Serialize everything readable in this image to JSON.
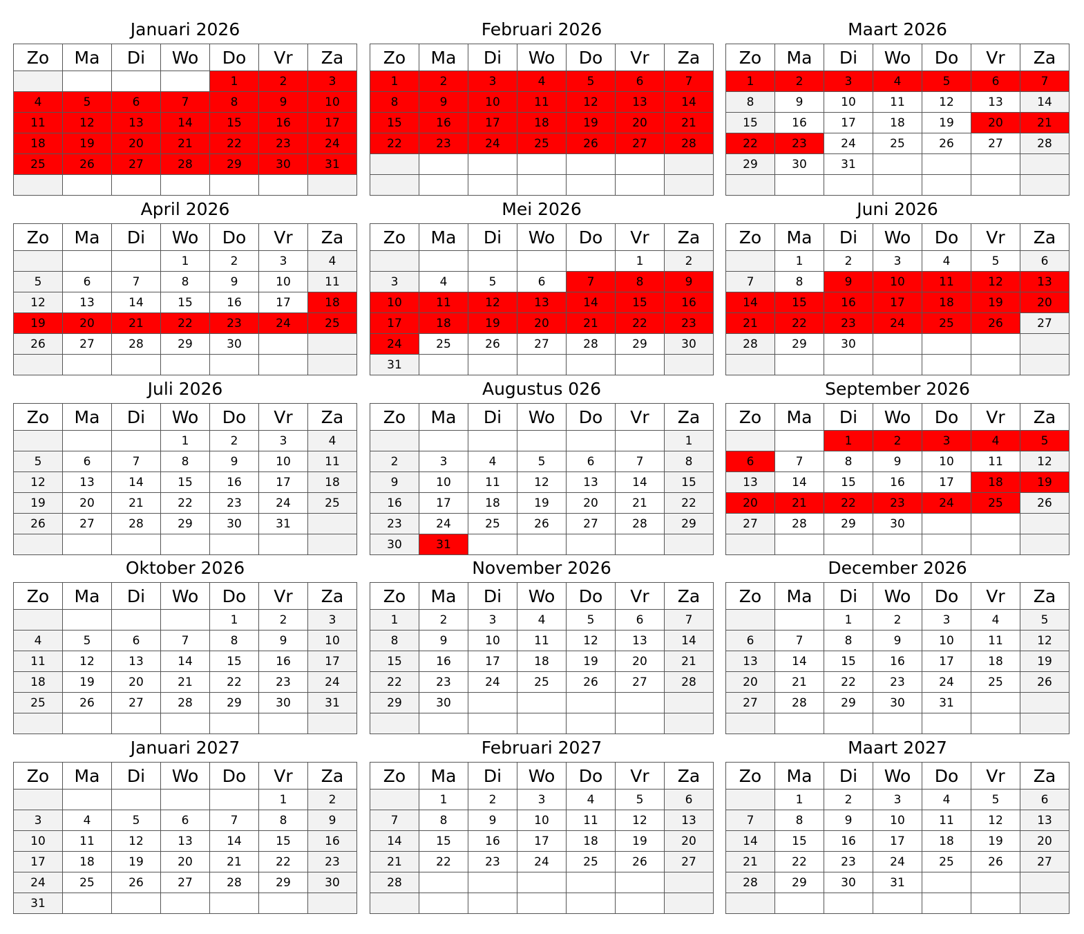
{
  "weekdays": [
    "Zo",
    "Ma",
    "Di",
    "Wo",
    "Do",
    "Vr",
    "Za"
  ],
  "colors": {
    "highlight": "#ff0000",
    "weekend": "#f2f2f2",
    "normal": "#ffffff",
    "border": "#555555"
  },
  "months": [
    {
      "title": "Januari 2026",
      "first_weekday": 4,
      "days": 31,
      "highlighted": [
        1,
        2,
        3,
        4,
        5,
        6,
        7,
        8,
        9,
        10,
        11,
        12,
        13,
        14,
        15,
        16,
        17,
        18,
        19,
        20,
        21,
        22,
        23,
        24,
        25,
        26,
        27,
        28,
        29,
        30,
        31
      ]
    },
    {
      "title": "Februari 2026",
      "first_weekday": 0,
      "days": 28,
      "highlighted": [
        1,
        2,
        3,
        4,
        5,
        6,
        7,
        8,
        9,
        10,
        11,
        12,
        13,
        14,
        15,
        16,
        17,
        18,
        19,
        20,
        21,
        22,
        23,
        24,
        25,
        26,
        27,
        28
      ]
    },
    {
      "title": "Maart 2026",
      "first_weekday": 0,
      "days": 31,
      "highlighted": [
        1,
        2,
        3,
        4,
        5,
        6,
        7,
        20,
        21,
        22,
        23
      ]
    },
    {
      "title": "April 2026",
      "first_weekday": 3,
      "days": 30,
      "highlighted": [
        18,
        19,
        20,
        21,
        22,
        23,
        24,
        25
      ]
    },
    {
      "title": "Mei 2026",
      "first_weekday": 5,
      "days": 31,
      "highlighted": [
        7,
        8,
        9,
        10,
        11,
        12,
        13,
        14,
        15,
        16,
        17,
        18,
        19,
        20,
        21,
        22,
        23,
        24
      ]
    },
    {
      "title": "Juni 2026",
      "first_weekday": 1,
      "days": 30,
      "highlighted": [
        9,
        10,
        11,
        12,
        13,
        14,
        15,
        16,
        17,
        18,
        19,
        20,
        21,
        22,
        23,
        24,
        25,
        26
      ]
    },
    {
      "title": "Juli 2026",
      "first_weekday": 3,
      "days": 31,
      "highlighted": []
    },
    {
      "title": "Augustus 026",
      "first_weekday": 6,
      "days": 31,
      "highlighted": [
        31
      ]
    },
    {
      "title": "September 2026",
      "first_weekday": 2,
      "days": 30,
      "highlighted": [
        1,
        2,
        3,
        4,
        5,
        6,
        18,
        19,
        20,
        21,
        22,
        23,
        24,
        25
      ]
    },
    {
      "title": "Oktober 2026",
      "first_weekday": 4,
      "days": 31,
      "highlighted": []
    },
    {
      "title": "November 2026",
      "first_weekday": 0,
      "days": 30,
      "highlighted": []
    },
    {
      "title": "December 2026",
      "first_weekday": 2,
      "days": 31,
      "highlighted": []
    },
    {
      "title": "Januari 2027",
      "first_weekday": 5,
      "days": 31,
      "highlighted": []
    },
    {
      "title": "Februari 2027",
      "first_weekday": 1,
      "days": 28,
      "highlighted": []
    },
    {
      "title": "Maart 2027",
      "first_weekday": 1,
      "days": 31,
      "highlighted": []
    }
  ]
}
